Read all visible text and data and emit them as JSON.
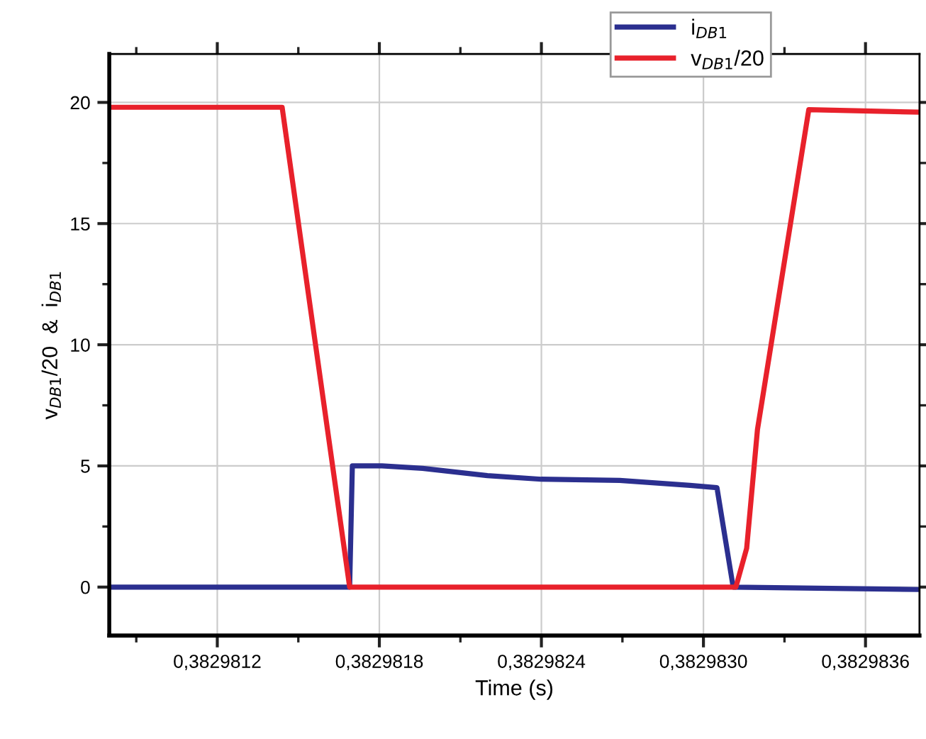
{
  "chart_data": {
    "type": "line",
    "xlabel": "Time (s)",
    "ylabel": "v$_{DB1}$/20  &  i$_{DB1}$",
    "xlim": [
      0.3829808,
      0.3829838
    ],
    "ylim": [
      -2,
      22
    ],
    "xticks": [
      {
        "value": 0.3829809,
        "label": null
      },
      {
        "value": 0.3829812,
        "label": "0,3829812"
      },
      {
        "value": 0.3829815,
        "label": null
      },
      {
        "value": 0.3829818,
        "label": "0,3829818"
      },
      {
        "value": 0.3829821,
        "label": null
      },
      {
        "value": 0.3829824,
        "label": "0,3829824"
      },
      {
        "value": 0.3829827,
        "label": null
      },
      {
        "value": 0.382983,
        "label": "0,3829830"
      },
      {
        "value": 0.3829833,
        "label": null
      },
      {
        "value": 0.3829836,
        "label": "0,3829836"
      }
    ],
    "yticks": [
      0,
      {
        "value": 2.5,
        "label": null
      },
      5,
      {
        "value": 7.5,
        "label": null
      },
      10,
      {
        "value": 12.5,
        "label": null
      },
      15,
      {
        "value": 17.5,
        "label": null
      },
      20
    ],
    "grid": true,
    "legend": "top right",
    "line_style": "solid",
    "marker": "none",
    "series": [
      {
        "name": "i$_{DB1}$",
        "color": "#2b2f8f",
        "x": [
          0.3829808,
          0.38298169,
          0.3829817,
          0.38298181,
          0.38298196,
          0.3829822,
          0.3829824,
          0.38298269,
          0.38298295,
          0.38298305,
          0.38298311,
          0.38298379
        ],
        "values": [
          0,
          0,
          5.0,
          5.0,
          4.9,
          4.6,
          4.45,
          4.4,
          4.2,
          4.1,
          0,
          -0.1
        ]
      },
      {
        "name": "v$_{DB1}$/20",
        "color": "#e8212b",
        "x": [
          0.3829808,
          0.38298144,
          0.38298169,
          0.38298312,
          0.38298316,
          0.3829832,
          0.38298339,
          0.38298379
        ],
        "values": [
          19.8,
          19.8,
          0,
          0,
          1.6,
          6.5,
          19.7,
          19.6
        ]
      }
    ]
  }
}
